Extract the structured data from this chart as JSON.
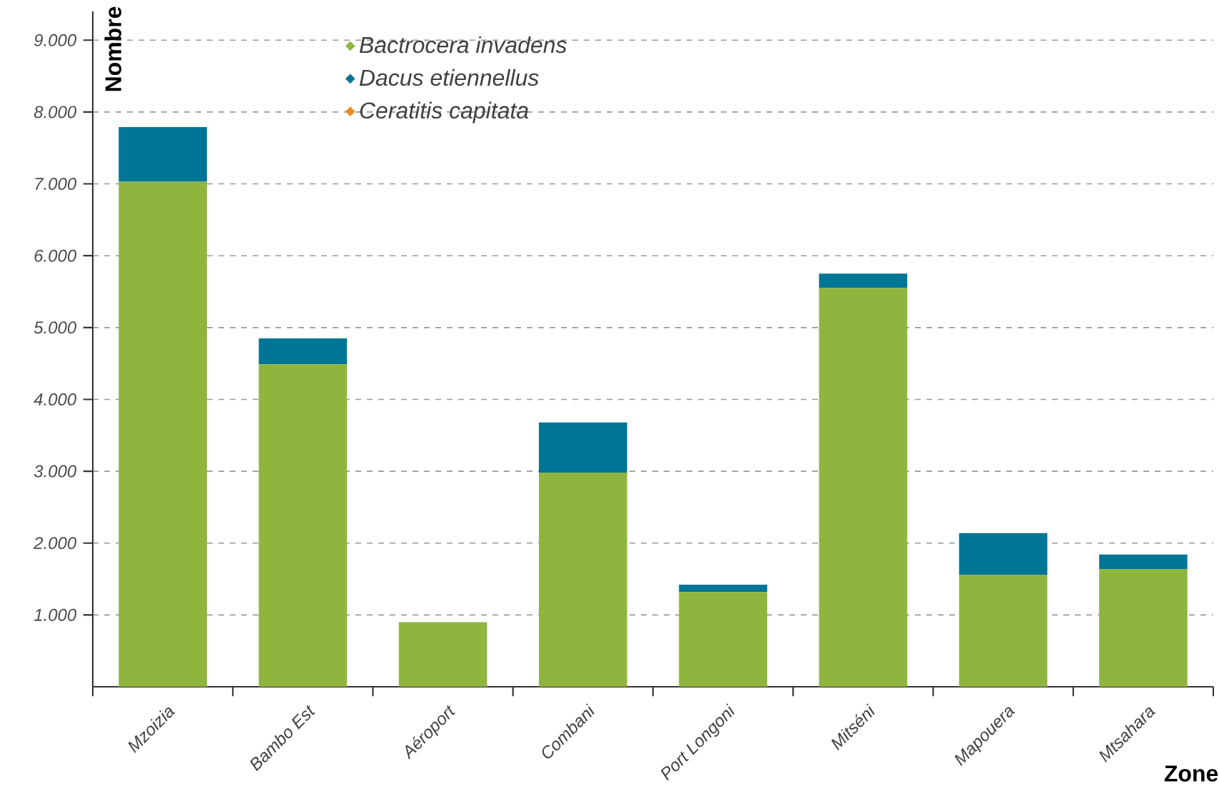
{
  "chart_data": {
    "type": "bar",
    "stacked": true,
    "xlabel": "Zone",
    "ylabel": "Nombre",
    "categories": [
      "Mzoizia",
      "Bambo Est",
      "Aéroport",
      "Combani",
      "Port Longoni",
      "Mitséni",
      "Mapouera",
      "Mtsahara"
    ],
    "series": [
      {
        "name": "Bactrocera invadens",
        "color": "#8fb53f",
        "values": [
          7030,
          4490,
          900,
          2980,
          1320,
          5550,
          1560,
          1640
        ]
      },
      {
        "name": "Dacus etiennellus",
        "color": "#007596",
        "values": [
          760,
          360,
          0,
          700,
          100,
          200,
          580,
          200
        ]
      },
      {
        "name": "Ceratitis capitata",
        "color": "#f28a21",
        "values": [
          0,
          0,
          0,
          0,
          0,
          0,
          0,
          0
        ]
      }
    ],
    "ylim": [
      0,
      9400
    ],
    "yticks": [
      {
        "value": 1000,
        "label": "1.000"
      },
      {
        "value": 2000,
        "label": "2.000"
      },
      {
        "value": 3000,
        "label": "3.000"
      },
      {
        "value": 4000,
        "label": "4.000"
      },
      {
        "value": 5000,
        "label": "5.000"
      },
      {
        "value": 6000,
        "label": "6.000"
      },
      {
        "value": 7000,
        "label": "7.000"
      },
      {
        "value": 8000,
        "label": "8.000"
      },
      {
        "value": 9000,
        "label": "9.000"
      }
    ],
    "grid": "y",
    "legend": "top",
    "marker": "diamond"
  }
}
